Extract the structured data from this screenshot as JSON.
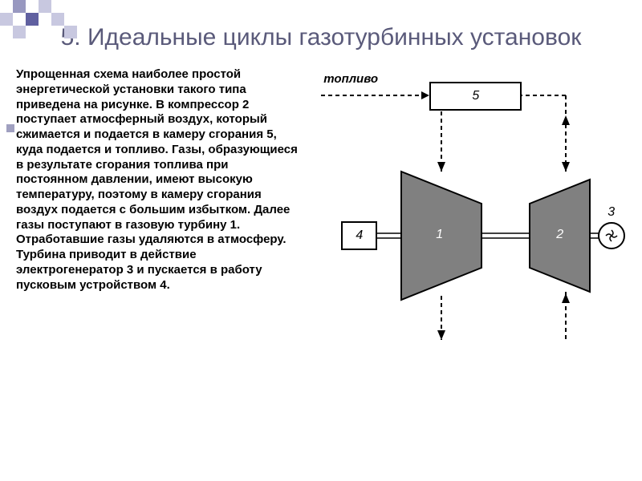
{
  "title": "5. Идеальные циклы газотурбинных установок",
  "body_text": "Упрощенная схема наиболее простой энергетической установки такого типа приведена на рисунке. В компрессор 2 поступает атмосферный воздух, который сжимается и подается в камеру сгорания 5, куда подается и топливо. Газы, образующиеся в результате сгорания топлива при постоянном давлении, имеют высокую температуру, поэтому в камеру сгорания воздух подается с большим избытком. Далее газы поступают в газовую турбину 1. Отработавшие газы удаляются в атмосферу. Турбина приводит в действие электрогенератор 3 и пускается в работу пусковым устройством 4.",
  "diagram": {
    "fuel_label": "топливо",
    "nodes": {
      "1": "1",
      "2": "2",
      "3": "3",
      "4": "4",
      "5": "5"
    },
    "colors": {
      "trap_fill": "#808080",
      "box_fill": "#ffffff",
      "stroke": "#000000",
      "bg": "#ffffff",
      "title_color": "#5a5a7a",
      "deco_light": "#c8c8e0",
      "deco_mid": "#9898c0",
      "deco_dark": "#6060a0"
    }
  },
  "deco_pattern": [
    [
      "",
      "#9898c0",
      "",
      "#c8c8e0",
      "",
      ""
    ],
    [
      "#c8c8e0",
      "",
      "#6060a0",
      "",
      "#c8c8e0",
      ""
    ],
    [
      "",
      "#c8c8e0",
      "",
      "",
      "",
      "#c8c8e0"
    ]
  ]
}
